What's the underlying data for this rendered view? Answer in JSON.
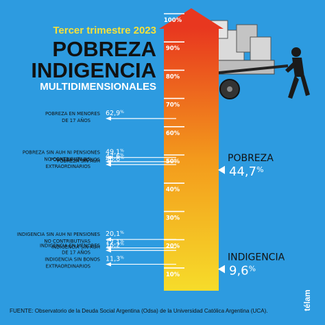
{
  "header": {
    "period": "Tercer trimestre 2023",
    "title_line1": "POBREZA",
    "title_line2": "INDIGENCIA",
    "title_line3": "MULTIDIMENSIONALES"
  },
  "colors": {
    "background": "#2d9be0",
    "period_text": "#f5e13a",
    "gradient_top": "#e8371f",
    "gradient_mid": "#f39a1c",
    "gradient_bottom": "#f6dc2a",
    "label_text": "#ffffff",
    "highlight_text": "#ffffff"
  },
  "chart_data": {
    "type": "bar",
    "title": "",
    "ylim": [
      0,
      100
    ],
    "ticks": [
      "10%",
      "20%",
      "30%",
      "40%",
      "50%",
      "60%",
      "70%",
      "80%",
      "90%",
      "100%"
    ],
    "highlights": [
      {
        "name": "POBREZA",
        "value_label": "44,7",
        "unit": "%",
        "value": 44.7
      },
      {
        "name": "INDIGENCIA",
        "value_label": "9,6",
        "unit": "%",
        "value": 9.6
      }
    ],
    "pobreza_items": [
      {
        "line1": "POBREZA EN MENORES",
        "line2": "DE 17 AÑOS",
        "value_label": "62,9",
        "unit": "%",
        "value": 62.9
      },
      {
        "line1": "POBREZA SIN AUH NI PENSIONES",
        "line2": "NO CONTRIBUTIVAS",
        "value_label": "49,1",
        "unit": "%",
        "value": 49.1
      },
      {
        "line1": "POBREZA SIN AUH",
        "line2": "",
        "value_label": "47,6",
        "unit": "%",
        "value": 47.6
      },
      {
        "line1": "POBREZA SIN BONOS",
        "line2": "EXTRAORDINARIOS",
        "value_label": "46,6",
        "unit": "%",
        "value": 46.6
      }
    ],
    "indigencia_items": [
      {
        "line1": "INDIGENCIA SIN AUH NI PENSIONES",
        "line2": "NO CONTRIBUTIVAS",
        "value_label": "20,1",
        "unit": "%",
        "value": 20.1
      },
      {
        "line1": "INDIGENCIA SIN AUH",
        "line2": "",
        "value_label": "17,1",
        "unit": "%",
        "value": 17.1
      },
      {
        "line1": "INDIGENCIA EN MENORES",
        "line2": "DE 17 AÑOS",
        "value_label": "16,2",
        "unit": "%",
        "value": 16.2
      },
      {
        "line1": "INDIGENCIA SIN BONOS",
        "line2": "EXTRAORDINARIOS",
        "value_label": "11,3",
        "unit": "%",
        "value": 11.3
      }
    ]
  },
  "footer": {
    "source": "FUENTE:  Observatorio de la Deuda Social Argentina (Odsa) de la Universidad Católica Argentina (UCA).",
    "logo_text": "télam"
  }
}
